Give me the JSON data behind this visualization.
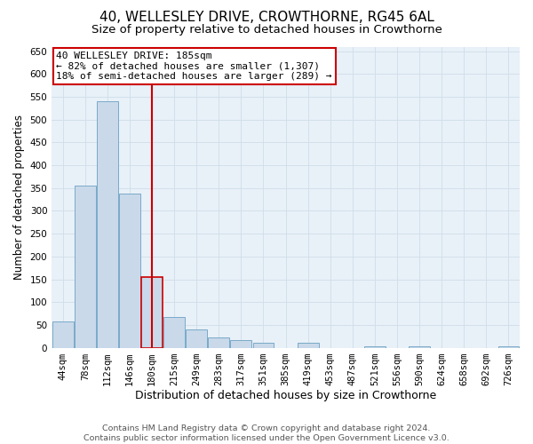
{
  "title": "40, WELLESLEY DRIVE, CROWTHORNE, RG45 6AL",
  "subtitle": "Size of property relative to detached houses in Crowthorne",
  "xlabel": "Distribution of detached houses by size in Crowthorne",
  "ylabel": "Number of detached properties",
  "footer_line1": "Contains HM Land Registry data © Crown copyright and database right 2024.",
  "footer_line2": "Contains public sector information licensed under the Open Government Licence v3.0.",
  "bin_labels": [
    "44sqm",
    "78sqm",
    "112sqm",
    "146sqm",
    "180sqm",
    "215sqm",
    "249sqm",
    "283sqm",
    "317sqm",
    "351sqm",
    "385sqm",
    "419sqm",
    "453sqm",
    "487sqm",
    "521sqm",
    "556sqm",
    "590sqm",
    "624sqm",
    "658sqm",
    "692sqm",
    "726sqm"
  ],
  "bar_values": [
    58,
    355,
    540,
    337,
    155,
    68,
    40,
    22,
    17,
    10,
    0,
    10,
    0,
    0,
    3,
    0,
    3,
    0,
    0,
    0,
    3
  ],
  "bar_color": "#c9d9ea",
  "bar_edge_color": "#7aaac8",
  "highlight_bar_index": 4,
  "highlight_bar_edge_color": "#cc0000",
  "vline_color": "#cc0000",
  "annotation_line1": "40 WELLESLEY DRIVE: 185sqm",
  "annotation_line2": "← 82% of detached houses are smaller (1,307)",
  "annotation_line3": "18% of semi-detached houses are larger (289) →",
  "annotation_box_facecolor": "#ffffff",
  "annotation_box_edgecolor": "#cc0000",
  "ylim": [
    0,
    660
  ],
  "yticks": [
    0,
    50,
    100,
    150,
    200,
    250,
    300,
    350,
    400,
    450,
    500,
    550,
    600,
    650
  ],
  "grid_color": "#d0dde8",
  "background_color": "#e8f0f8",
  "title_fontsize": 11,
  "subtitle_fontsize": 9.5,
  "ylabel_fontsize": 8.5,
  "xlabel_fontsize": 9,
  "tick_fontsize": 7.5,
  "annotation_fontsize": 8,
  "footer_fontsize": 6.8
}
